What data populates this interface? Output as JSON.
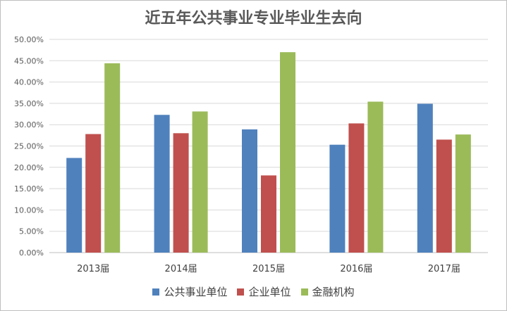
{
  "chart_data": {
    "type": "bar",
    "title": "近五年公共事业专业毕业生去向",
    "categories": [
      "2013届",
      "2014届",
      "2015届",
      "2016届",
      "2017届"
    ],
    "series": [
      {
        "name": "公共事业单位",
        "color": "#4f81bd",
        "values": [
          22.2,
          32.3,
          28.9,
          25.3,
          34.9
        ]
      },
      {
        "name": "企业单位",
        "color": "#c0504d",
        "values": [
          27.8,
          28.0,
          18.1,
          30.3,
          26.5
        ]
      },
      {
        "name": "金融机构",
        "color": "#9bbb59",
        "values": [
          44.4,
          33.1,
          47.0,
          35.4,
          27.7
        ]
      }
    ],
    "ylim": [
      0,
      50
    ],
    "yticks": [
      "0.00%",
      "5.00%",
      "10.00%",
      "15.00%",
      "20.00%",
      "25.00%",
      "30.00%",
      "35.00%",
      "40.00%",
      "45.00%",
      "50.00%"
    ],
    "grid": true,
    "legend_position": "bottom"
  }
}
